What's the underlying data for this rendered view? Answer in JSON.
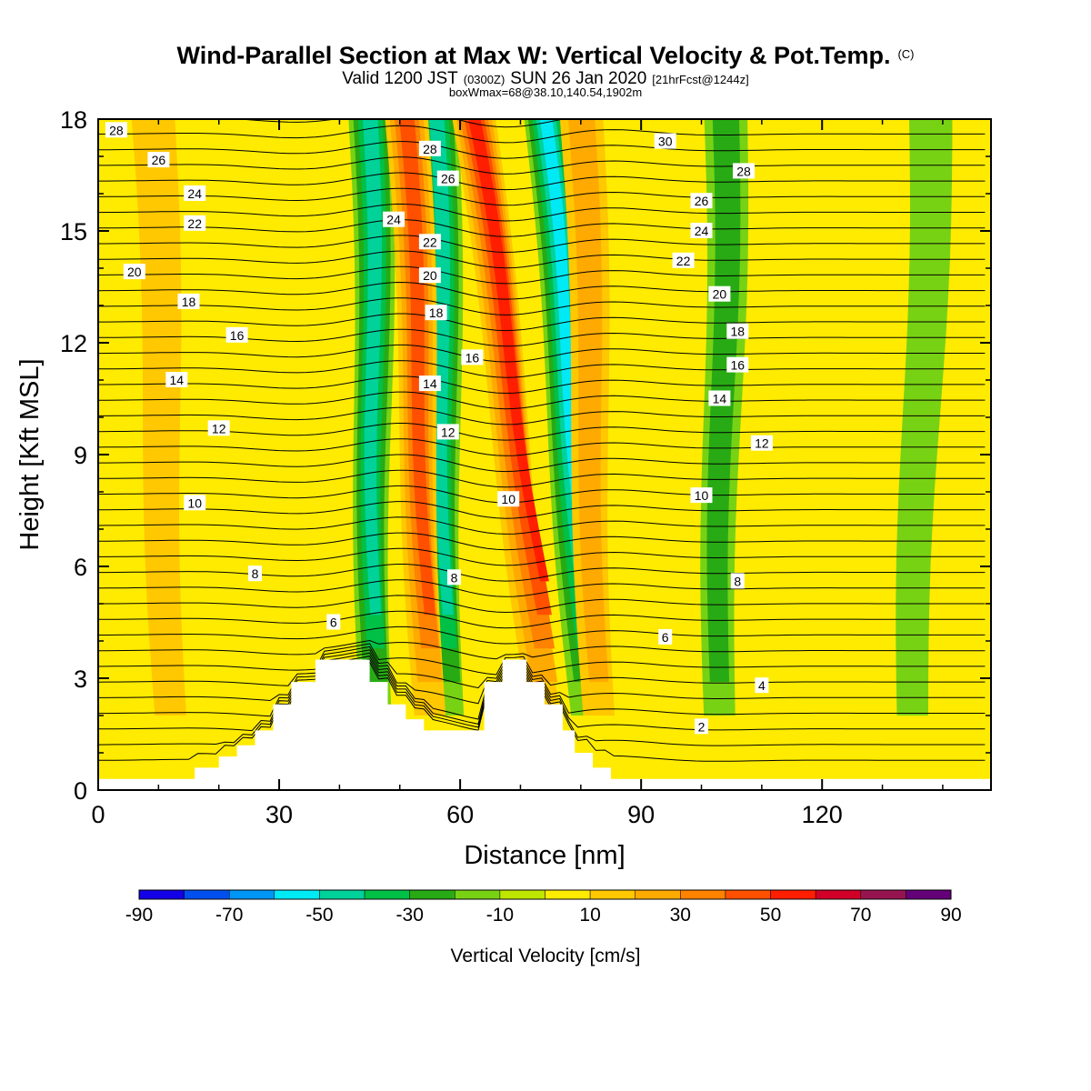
{
  "header": {
    "title_main": "Wind-Parallel Section at Max W: Vertical Velocity & Pot.Temp.",
    "title_mark": "(C)",
    "valid_prefix": "Valid 1200 JST",
    "valid_utc": "(0300Z)",
    "valid_date": "SUN 26 Jan 2020",
    "valid_fcst": "[21hrFcst@1244z]",
    "box_info": "boxWmax=68@38.10,140.54,1902m"
  },
  "colorbar": {
    "label": "Vertical Velocity [cm/s]",
    "tick_labels": [
      "-90",
      "-70",
      "-50",
      "-30",
      "-10",
      "10",
      "30",
      "50",
      "70",
      "90"
    ],
    "colors": [
      "#1400e6",
      "#0050f0",
      "#0096f5",
      "#00eaf5",
      "#00d29a",
      "#00c046",
      "#28aa14",
      "#78d214",
      "#bee600",
      "#ffeb00",
      "#ffc800",
      "#ffaa00",
      "#ff8200",
      "#ff5000",
      "#ff1e00",
      "#d20028",
      "#961450",
      "#640078"
    ]
  },
  "chart_data": {
    "type": "heatmap",
    "xlabel": "Distance [nm]",
    "ylabel": "Height [Kft MSL]",
    "xlim": [
      0,
      148
    ],
    "ylim": [
      0,
      18
    ],
    "x_ticks": [
      0,
      30,
      60,
      90,
      120
    ],
    "y_ticks": [
      0,
      3,
      6,
      9,
      12,
      15,
      18
    ],
    "field": "Vertical Velocity [cm/s]",
    "terrain_profile": [
      [
        0,
        0.3
      ],
      [
        16,
        0.3
      ],
      [
        16,
        0.6
      ],
      [
        20,
        0.6
      ],
      [
        20,
        0.9
      ],
      [
        23,
        0.9
      ],
      [
        23,
        1.2
      ],
      [
        26,
        1.2
      ],
      [
        26,
        1.6
      ],
      [
        29,
        1.6
      ],
      [
        29,
        2.3
      ],
      [
        32,
        2.3
      ],
      [
        32,
        2.9
      ],
      [
        36,
        2.9
      ],
      [
        36,
        3.5
      ],
      [
        45,
        3.5
      ],
      [
        45,
        2.9
      ],
      [
        48,
        2.9
      ],
      [
        48,
        2.3
      ],
      [
        51,
        2.3
      ],
      [
        51,
        1.9
      ],
      [
        54,
        1.9
      ],
      [
        54,
        1.6
      ],
      [
        64,
        1.6
      ],
      [
        64,
        2.9
      ],
      [
        67,
        2.9
      ],
      [
        67,
        3.5
      ],
      [
        71,
        3.5
      ],
      [
        71,
        2.9
      ],
      [
        74,
        2.9
      ],
      [
        74,
        2.3
      ],
      [
        77,
        2.3
      ],
      [
        77,
        1.6
      ],
      [
        79,
        1.6
      ],
      [
        79,
        1.0
      ],
      [
        82,
        1.0
      ],
      [
        82,
        0.6
      ],
      [
        85,
        0.6
      ],
      [
        85,
        0.3
      ],
      [
        148,
        0.3
      ]
    ],
    "updraft_bands": [
      {
        "x_top": 51,
        "x_bottom": 55,
        "w_peak": 40
      },
      {
        "x_top": 62,
        "x_bottom": 74,
        "w_peak": 50
      },
      {
        "x_top": 80,
        "x_bottom": 83,
        "w_peak": 20
      },
      {
        "x_top": 9,
        "x_bottom": 12,
        "w_peak": 10
      }
    ],
    "downdraft_bands": [
      {
        "x_top": 45,
        "x_bottom": 46,
        "w_peak": -40
      },
      {
        "x_top": 56,
        "x_bottom": 58,
        "w_peak": -40
      },
      {
        "x_top": 74,
        "x_bottom": 81,
        "w_peak": -50
      },
      {
        "x_top": 104,
        "x_bottom": 103,
        "w_peak": -20
      },
      {
        "x_top": 138,
        "x_bottom": 135,
        "w_peak": -10
      }
    ],
    "box_w_max": 68,
    "contour_labels": [
      {
        "value": "28",
        "x": 3,
        "y": 17.7
      },
      {
        "value": "26",
        "x": 10,
        "y": 16.9
      },
      {
        "value": "24",
        "x": 16,
        "y": 16.0
      },
      {
        "value": "22",
        "x": 16,
        "y": 15.2
      },
      {
        "value": "20",
        "x": 6,
        "y": 13.9
      },
      {
        "value": "18",
        "x": 15,
        "y": 13.1
      },
      {
        "value": "16",
        "x": 23,
        "y": 12.2
      },
      {
        "value": "14",
        "x": 13,
        "y": 11.0
      },
      {
        "value": "12",
        "x": 20,
        "y": 9.7
      },
      {
        "value": "10",
        "x": 16,
        "y": 7.7
      },
      {
        "value": "8",
        "x": 26,
        "y": 5.8
      },
      {
        "value": "6",
        "x": 39,
        "y": 4.5
      },
      {
        "value": "28",
        "x": 55,
        "y": 17.2
      },
      {
        "value": "26",
        "x": 58,
        "y": 16.4
      },
      {
        "value": "24",
        "x": 49,
        "y": 15.3
      },
      {
        "value": "22",
        "x": 55,
        "y": 14.7
      },
      {
        "value": "20",
        "x": 55,
        "y": 13.8
      },
      {
        "value": "18",
        "x": 56,
        "y": 12.8
      },
      {
        "value": "16",
        "x": 62,
        "y": 11.6
      },
      {
        "value": "14",
        "x": 55,
        "y": 10.9
      },
      {
        "value": "12",
        "x": 58,
        "y": 9.6
      },
      {
        "value": "10",
        "x": 68,
        "y": 7.8
      },
      {
        "value": "8",
        "x": 59,
        "y": 5.7
      },
      {
        "value": "30",
        "x": 94,
        "y": 17.4
      },
      {
        "value": "28",
        "x": 107,
        "y": 16.6
      },
      {
        "value": "26",
        "x": 100,
        "y": 15.8
      },
      {
        "value": "24",
        "x": 100,
        "y": 15.0
      },
      {
        "value": "22",
        "x": 97,
        "y": 14.2
      },
      {
        "value": "20",
        "x": 103,
        "y": 13.3
      },
      {
        "value": "18",
        "x": 106,
        "y": 12.3
      },
      {
        "value": "16",
        "x": 106,
        "y": 11.4
      },
      {
        "value": "14",
        "x": 103,
        "y": 10.5
      },
      {
        "value": "12",
        "x": 110,
        "y": 9.3
      },
      {
        "value": "10",
        "x": 100,
        "y": 7.9
      },
      {
        "value": "8",
        "x": 106,
        "y": 5.6
      },
      {
        "value": "6",
        "x": 94,
        "y": 4.1
      },
      {
        "value": "4",
        "x": 110,
        "y": 2.8
      },
      {
        "value": "2",
        "x": 100,
        "y": 1.7
      }
    ]
  }
}
